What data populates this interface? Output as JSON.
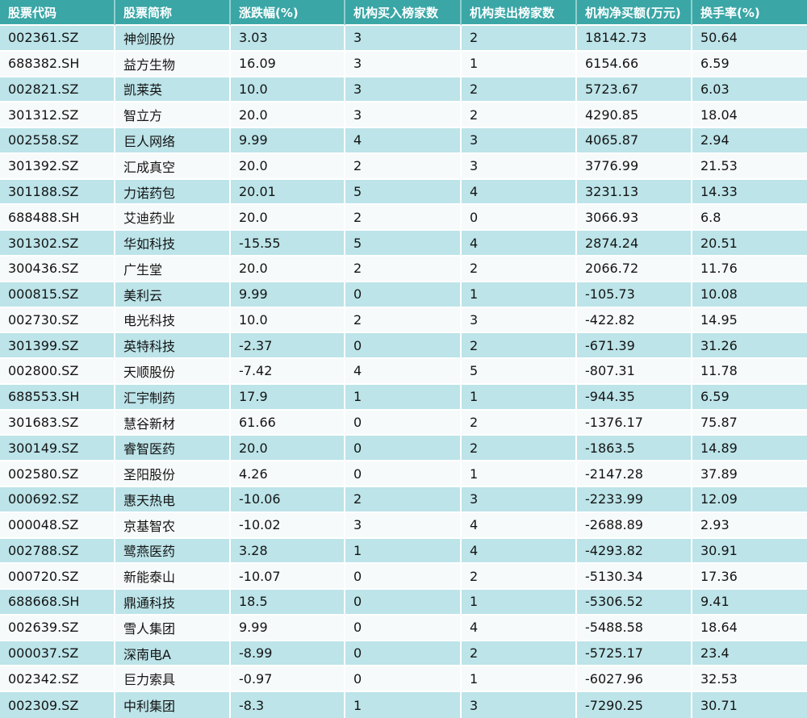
{
  "colors": {
    "header_bg": "#3aa6a6",
    "header_text": "#ffffff",
    "row_odd_bg": "#bce4e9",
    "row_even_bg": "#f7fafa",
    "body_text": "#141414",
    "grid_line": "#ffffff"
  },
  "chart_data": {
    "type": "table",
    "columns": [
      "股票代码",
      "股票简称",
      "涨跌幅(%)",
      "机构买入榜家数",
      "机构卖出榜家数",
      "机构净买额(万元)",
      "换手率(%)"
    ],
    "rows": [
      [
        "002361.SZ",
        "神剑股份",
        "3.03",
        "3",
        "2",
        "18142.73",
        "50.64"
      ],
      [
        "688382.SH",
        "益方生物",
        "16.09",
        "3",
        "1",
        "6154.66",
        "6.59"
      ],
      [
        "002821.SZ",
        "凯莱英",
        "10.0",
        "3",
        "2",
        "5723.67",
        "6.03"
      ],
      [
        "301312.SZ",
        "智立方",
        "20.0",
        "3",
        "2",
        "4290.85",
        "18.04"
      ],
      [
        "002558.SZ",
        "巨人网络",
        "9.99",
        "4",
        "3",
        "4065.87",
        "2.94"
      ],
      [
        "301392.SZ",
        "汇成真空",
        "20.0",
        "2",
        "3",
        "3776.99",
        "21.53"
      ],
      [
        "301188.SZ",
        "力诺药包",
        "20.01",
        "5",
        "4",
        "3231.13",
        "14.33"
      ],
      [
        "688488.SH",
        "艾迪药业",
        "20.0",
        "2",
        "0",
        "3066.93",
        "6.8"
      ],
      [
        "301302.SZ",
        "华如科技",
        "-15.55",
        "5",
        "4",
        "2874.24",
        "20.51"
      ],
      [
        "300436.SZ",
        "广生堂",
        "20.0",
        "2",
        "2",
        "2066.72",
        "11.76"
      ],
      [
        "000815.SZ",
        "美利云",
        "9.99",
        "0",
        "1",
        "-105.73",
        "10.08"
      ],
      [
        "002730.SZ",
        "电光科技",
        "10.0",
        "2",
        "3",
        "-422.82",
        "14.95"
      ],
      [
        "301399.SZ",
        "英特科技",
        "-2.37",
        "0",
        "2",
        "-671.39",
        "31.26"
      ],
      [
        "002800.SZ",
        "天顺股份",
        "-7.42",
        "4",
        "5",
        "-807.31",
        "11.78"
      ],
      [
        "688553.SH",
        "汇宇制药",
        "17.9",
        "1",
        "1",
        "-944.35",
        "6.59"
      ],
      [
        "301683.SZ",
        "慧谷新材",
        "61.66",
        "0",
        "2",
        "-1376.17",
        "75.87"
      ],
      [
        "300149.SZ",
        "睿智医药",
        "20.0",
        "0",
        "2",
        "-1863.5",
        "14.89"
      ],
      [
        "002580.SZ",
        "圣阳股份",
        "4.26",
        "0",
        "1",
        "-2147.28",
        "37.89"
      ],
      [
        "000692.SZ",
        "惠天热电",
        "-10.06",
        "2",
        "3",
        "-2233.99",
        "12.09"
      ],
      [
        "000048.SZ",
        "京基智农",
        "-10.02",
        "3",
        "4",
        "-2688.89",
        "2.93"
      ],
      [
        "002788.SZ",
        "鹭燕医药",
        "3.28",
        "1",
        "4",
        "-4293.82",
        "30.91"
      ],
      [
        "000720.SZ",
        "新能泰山",
        "-10.07",
        "0",
        "2",
        "-5130.34",
        "17.36"
      ],
      [
        "688668.SH",
        "鼎通科技",
        "18.5",
        "0",
        "1",
        "-5306.52",
        "9.41"
      ],
      [
        "002639.SZ",
        "雪人集团",
        "9.99",
        "0",
        "4",
        "-5488.58",
        "18.64"
      ],
      [
        "000037.SZ",
        "深南电A",
        "-8.99",
        "0",
        "2",
        "-5725.17",
        "23.4"
      ],
      [
        "002342.SZ",
        "巨力索具",
        "-0.97",
        "0",
        "1",
        "-6027.96",
        "32.53"
      ],
      [
        "002309.SZ",
        "中利集团",
        "-8.3",
        "1",
        "3",
        "-7290.25",
        "30.71"
      ]
    ]
  }
}
